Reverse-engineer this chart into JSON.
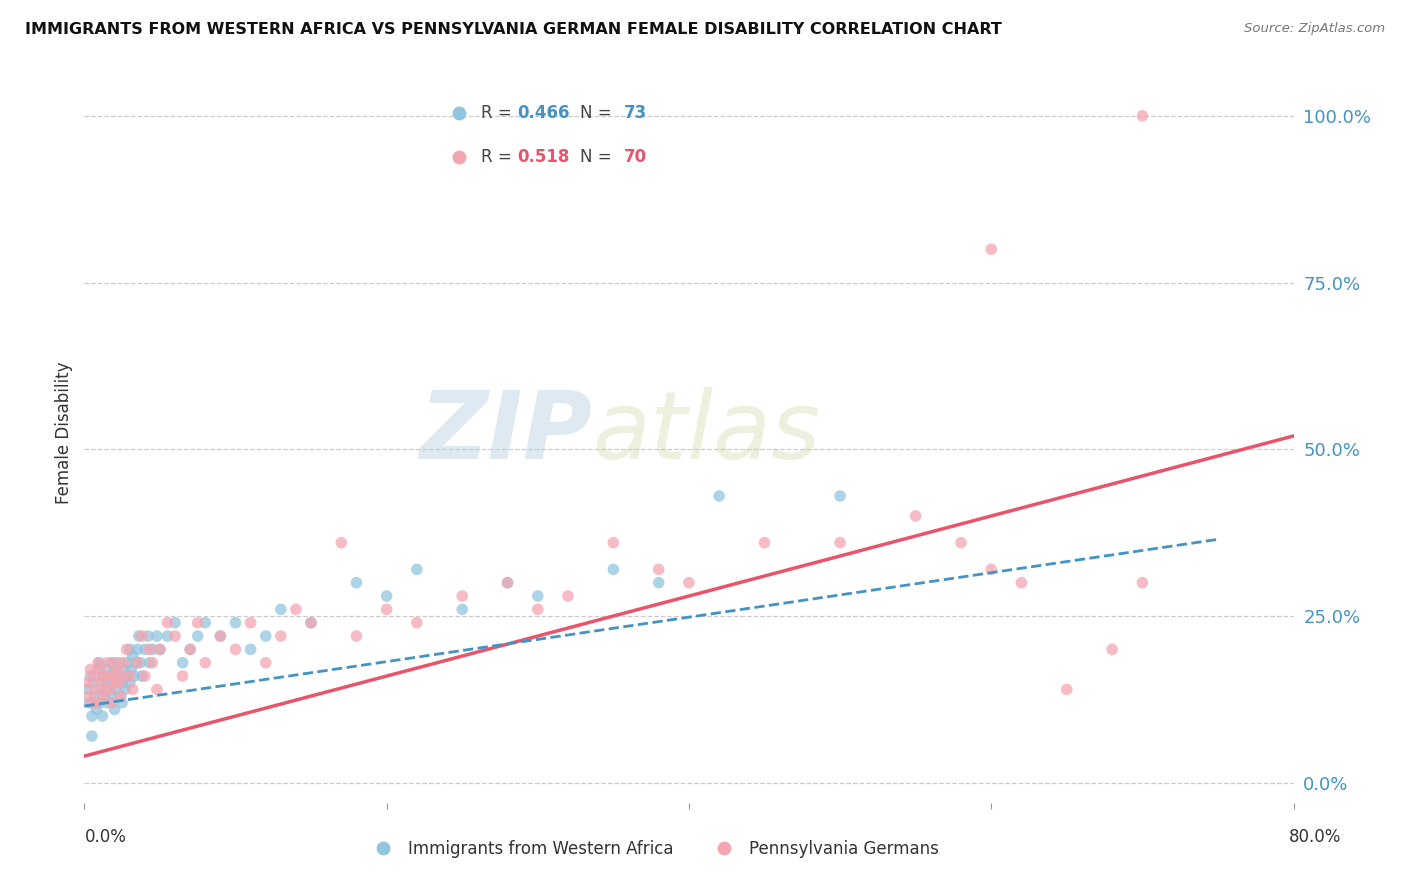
{
  "title": "IMMIGRANTS FROM WESTERN AFRICA VS PENNSYLVANIA GERMAN FEMALE DISABILITY CORRELATION CHART",
  "source": "Source: ZipAtlas.com",
  "ylabel": "Female Disability",
  "ytick_labels": [
    "0.0%",
    "25.0%",
    "50.0%",
    "75.0%",
    "100.0%"
  ],
  "ytick_values": [
    0.0,
    0.25,
    0.5,
    0.75,
    1.0
  ],
  "xlim": [
    0.0,
    0.8
  ],
  "ylim": [
    -0.03,
    1.08
  ],
  "legend_blue_R": "0.466",
  "legend_blue_N": "73",
  "legend_pink_R": "0.518",
  "legend_pink_N": "70",
  "legend_label_blue": "Immigrants from Western Africa",
  "legend_label_pink": "Pennsylvania Germans",
  "blue_color": "#92c5de",
  "pink_color": "#f4a5b0",
  "blue_line_color": "#4393c3",
  "pink_line_color": "#e8546a",
  "watermark_ZIP": "ZIP",
  "watermark_atlas": "atlas",
  "blue_scatter_x": [
    0.002,
    0.003,
    0.004,
    0.005,
    0.006,
    0.007,
    0.008,
    0.009,
    0.01,
    0.01,
    0.011,
    0.012,
    0.012,
    0.013,
    0.014,
    0.015,
    0.015,
    0.016,
    0.017,
    0.018,
    0.018,
    0.019,
    0.02,
    0.02,
    0.021,
    0.022,
    0.023,
    0.024,
    0.025,
    0.025,
    0.026,
    0.027,
    0.028,
    0.029,
    0.03,
    0.03,
    0.031,
    0.032,
    0.033,
    0.034,
    0.035,
    0.036,
    0.037,
    0.038,
    0.04,
    0.042,
    0.043,
    0.045,
    0.048,
    0.05,
    0.055,
    0.06,
    0.065,
    0.07,
    0.075,
    0.08,
    0.09,
    0.1,
    0.11,
    0.12,
    0.13,
    0.15,
    0.18,
    0.2,
    0.22,
    0.25,
    0.28,
    0.3,
    0.35,
    0.38,
    0.42,
    0.5,
    0.005
  ],
  "blue_scatter_y": [
    0.14,
    0.12,
    0.16,
    0.1,
    0.15,
    0.13,
    0.11,
    0.17,
    0.18,
    0.12,
    0.14,
    0.16,
    0.1,
    0.13,
    0.15,
    0.17,
    0.12,
    0.14,
    0.16,
    0.18,
    0.13,
    0.15,
    0.17,
    0.11,
    0.14,
    0.16,
    0.18,
    0.13,
    0.15,
    0.12,
    0.17,
    0.14,
    0.16,
    0.18,
    0.15,
    0.2,
    0.17,
    0.19,
    0.16,
    0.18,
    0.2,
    0.22,
    0.18,
    0.16,
    0.2,
    0.22,
    0.18,
    0.2,
    0.22,
    0.2,
    0.22,
    0.24,
    0.18,
    0.2,
    0.22,
    0.24,
    0.22,
    0.24,
    0.2,
    0.22,
    0.26,
    0.24,
    0.3,
    0.28,
    0.32,
    0.26,
    0.3,
    0.28,
    0.32,
    0.3,
    0.43,
    0.43,
    0.07
  ],
  "pink_scatter_x": [
    0.002,
    0.003,
    0.004,
    0.005,
    0.006,
    0.007,
    0.008,
    0.009,
    0.01,
    0.011,
    0.012,
    0.013,
    0.014,
    0.015,
    0.016,
    0.017,
    0.018,
    0.019,
    0.02,
    0.021,
    0.022,
    0.023,
    0.024,
    0.025,
    0.026,
    0.028,
    0.03,
    0.032,
    0.035,
    0.038,
    0.04,
    0.043,
    0.045,
    0.048,
    0.05,
    0.055,
    0.06,
    0.065,
    0.07,
    0.075,
    0.08,
    0.09,
    0.1,
    0.11,
    0.12,
    0.13,
    0.14,
    0.15,
    0.17,
    0.18,
    0.2,
    0.22,
    0.25,
    0.28,
    0.3,
    0.32,
    0.35,
    0.38,
    0.4,
    0.45,
    0.5,
    0.55,
    0.58,
    0.6,
    0.62,
    0.65,
    0.68,
    0.7,
    0.6,
    0.7
  ],
  "pink_scatter_y": [
    0.15,
    0.13,
    0.17,
    0.12,
    0.16,
    0.14,
    0.12,
    0.18,
    0.17,
    0.15,
    0.13,
    0.16,
    0.14,
    0.18,
    0.16,
    0.14,
    0.12,
    0.16,
    0.18,
    0.15,
    0.17,
    0.15,
    0.13,
    0.16,
    0.18,
    0.2,
    0.16,
    0.14,
    0.18,
    0.22,
    0.16,
    0.2,
    0.18,
    0.14,
    0.2,
    0.24,
    0.22,
    0.16,
    0.2,
    0.24,
    0.18,
    0.22,
    0.2,
    0.24,
    0.18,
    0.22,
    0.26,
    0.24,
    0.36,
    0.22,
    0.26,
    0.24,
    0.28,
    0.3,
    0.26,
    0.28,
    0.36,
    0.32,
    0.3,
    0.36,
    0.36,
    0.4,
    0.36,
    0.32,
    0.3,
    0.14,
    0.2,
    0.3,
    0.8,
    1.0
  ],
  "blue_trend_x": [
    0.0,
    0.75
  ],
  "blue_trend_y": [
    0.115,
    0.365
  ],
  "pink_trend_x": [
    0.0,
    0.8
  ],
  "pink_trend_y": [
    0.04,
    0.52
  ]
}
